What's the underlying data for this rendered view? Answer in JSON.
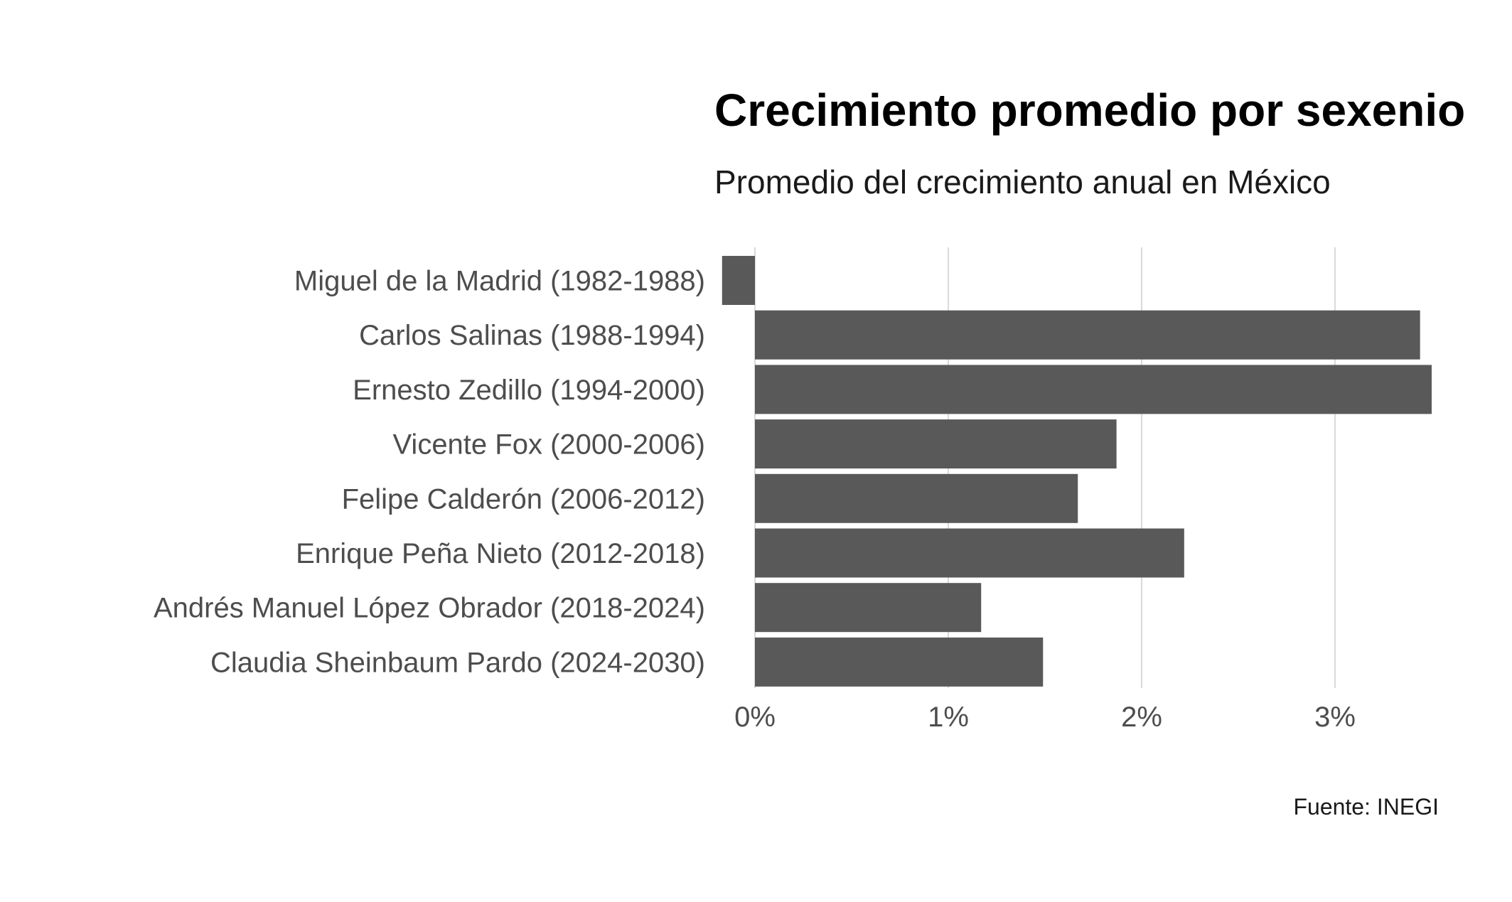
{
  "chart_data": {
    "type": "bar",
    "orientation": "horizontal",
    "title": "Crecimiento promedio por sexenio",
    "subtitle": "Promedio del crecimiento anual en México",
    "caption": "Fuente: INEGI",
    "xlabel": "",
    "ylabel": "",
    "categories": [
      "Miguel de la Madrid (1982-1988)",
      "Carlos Salinas (1988-1994)",
      "Ernesto Zedillo (1994-2000)",
      "Vicente Fox (2000-2006)",
      "Felipe Calderón (2006-2012)",
      "Enrique Peña Nieto (2012-2018)",
      "Andrés Manuel López Obrador (2018-2024)",
      "Claudia Sheinbaum Pardo (2024-2030)"
    ],
    "values": [
      -0.17,
      3.44,
      3.5,
      1.87,
      1.67,
      2.22,
      1.17,
      1.49
    ],
    "x_ticks": [
      0,
      1,
      2,
      3
    ],
    "x_tick_labels": [
      "0%",
      "1%",
      "2%",
      "3%"
    ],
    "xlim": [
      -0.17,
      3.52
    ],
    "grid": true,
    "colors": {
      "bar": "#595959",
      "grid": "#d9d9d9",
      "background": "#ffffff"
    }
  }
}
